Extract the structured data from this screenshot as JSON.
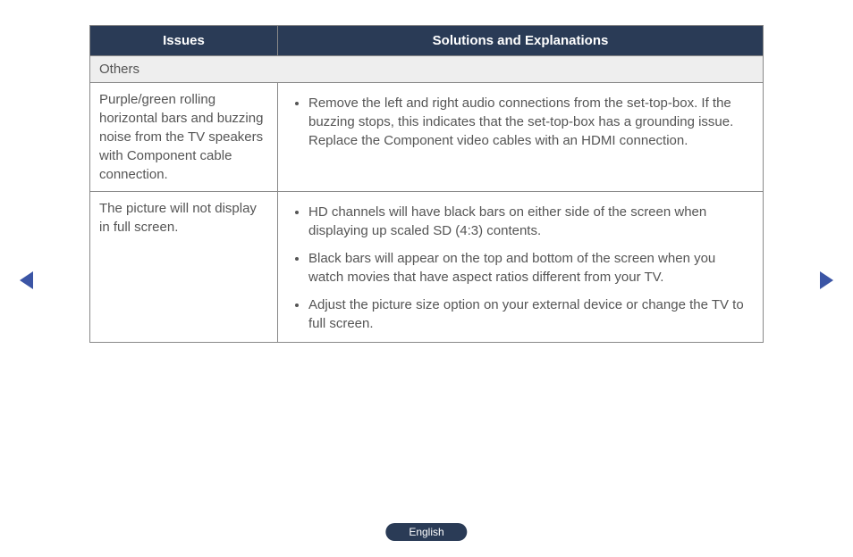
{
  "table": {
    "headers": {
      "issues": "Issues",
      "solutions": "Solutions and Explanations"
    },
    "section_label": "Others",
    "rows": [
      {
        "issue": "Purple/green rolling horizontal bars and buzzing noise from the TV speakers with Component cable connection.",
        "solutions": [
          "Remove the left and right audio connections from the set-top-box. If the buzzing stops, this indicates that the set-top-box has a grounding issue. Replace the Component video cables with an HDMI connection."
        ]
      },
      {
        "issue": "The picture will not display in full screen.",
        "solutions": [
          "HD channels will have black bars on either side of the screen when displaying up scaled SD (4:3) contents.",
          "Black bars will appear on the top and bottom of the screen when you watch movies that have aspect ratios different from your TV.",
          "Adjust the picture size option on your external device or change the TV to full screen."
        ]
      }
    ]
  },
  "footer": {
    "language": "English"
  },
  "colors": {
    "header_bg": "#2a3b56",
    "header_text": "#ffffff",
    "section_bg": "#eeeeee",
    "body_text": "#555555",
    "border": "#888888",
    "arrow": "#3b55a5",
    "badge_bg": "#2a3b56"
  }
}
